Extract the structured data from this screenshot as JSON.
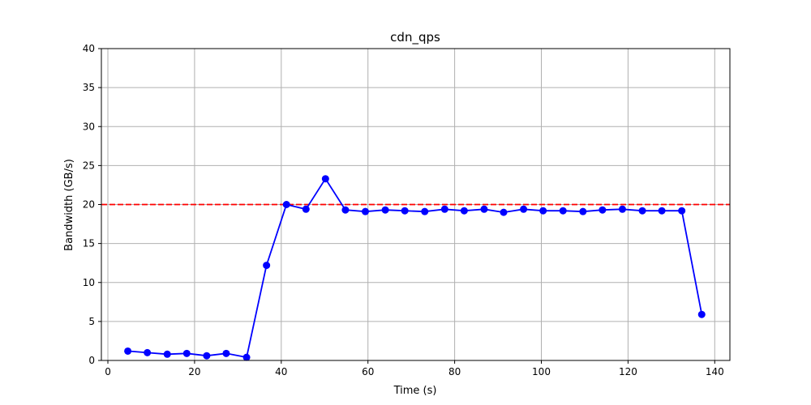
{
  "chart_data": {
    "type": "line",
    "title": "cdn_qps",
    "xlabel": "Time (s)",
    "ylabel": "Bandwidth (GB/s)",
    "xlim": [
      -1.5,
      143.5
    ],
    "ylim": [
      0,
      40
    ],
    "xticks": [
      0,
      20,
      40,
      60,
      80,
      100,
      120,
      140
    ],
    "yticks": [
      0,
      5,
      10,
      15,
      20,
      25,
      30,
      35,
      40
    ],
    "grid": true,
    "series": [
      {
        "color": "#0000ff",
        "marker": "circle",
        "x": [
          4.6,
          9.1,
          13.7,
          18.2,
          22.8,
          27.3,
          32.0,
          36.6,
          41.2,
          45.7,
          50.2,
          54.8,
          59.4,
          64.0,
          68.5,
          73.1,
          77.7,
          82.2,
          86.8,
          91.3,
          95.9,
          100.4,
          105.0,
          109.6,
          114.1,
          118.7,
          123.3,
          127.8,
          132.4,
          137.0
        ],
        "y": [
          1.2,
          1.0,
          0.8,
          0.9,
          0.6,
          0.9,
          0.4,
          12.2,
          20.0,
          19.4,
          23.3,
          19.3,
          19.1,
          19.3,
          19.2,
          19.1,
          19.4,
          19.2,
          19.4,
          19.0,
          19.4,
          19.2,
          19.2,
          19.1,
          19.3,
          19.4,
          19.2,
          19.2,
          19.2,
          5.9
        ]
      }
    ],
    "threshold": {
      "y": 20,
      "color": "#ff0000",
      "style": "dashed"
    }
  }
}
